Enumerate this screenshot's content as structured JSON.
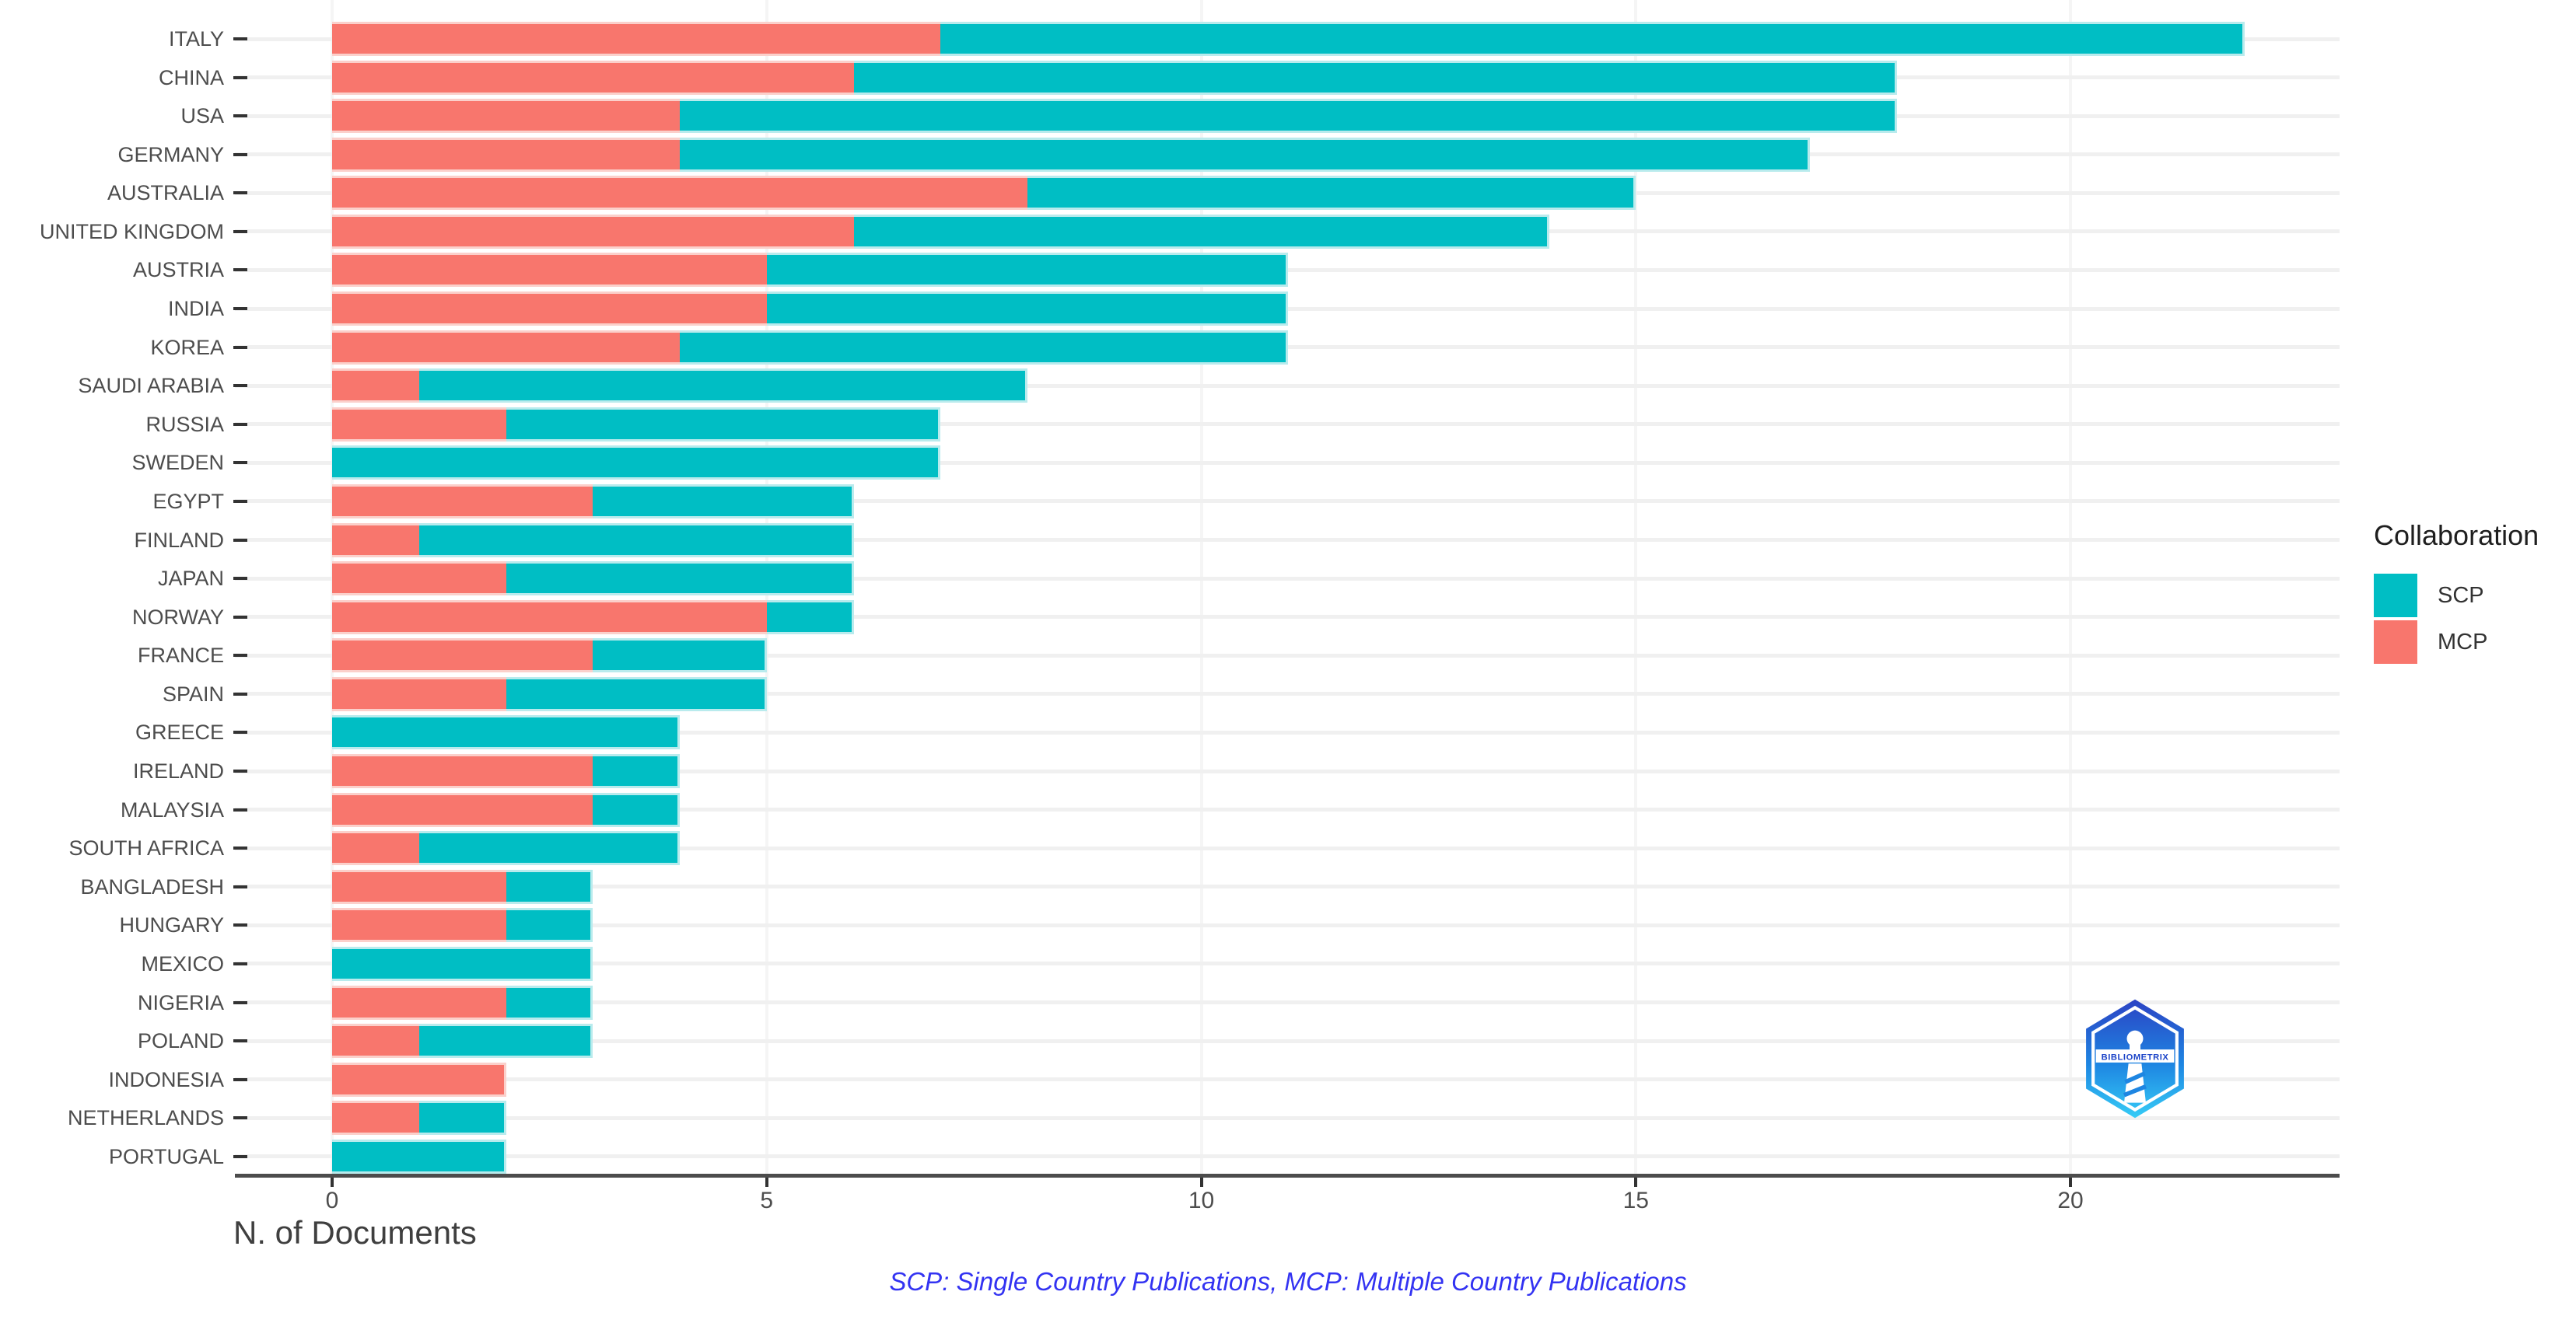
{
  "chart_data": {
    "type": "bar",
    "orientation": "horizontal",
    "stacked": true,
    "stack_order": [
      "MCP",
      "SCP"
    ],
    "title": "",
    "xlabel": "N. of Documents",
    "ylabel": "",
    "xlim": [
      0,
      23
    ],
    "x_ticks": [
      0,
      5,
      10,
      15,
      20
    ],
    "x_tick_labels": [
      "0",
      "5",
      "10",
      "15",
      "20"
    ],
    "grid": "major",
    "legend_position": "right",
    "categories": [
      "ITALY",
      "CHINA",
      "USA",
      "GERMANY",
      "AUSTRALIA",
      "UNITED KINGDOM",
      "AUSTRIA",
      "INDIA",
      "KOREA",
      "SAUDI ARABIA",
      "RUSSIA",
      "SWEDEN",
      "EGYPT",
      "FINLAND",
      "JAPAN",
      "NORWAY",
      "FRANCE",
      "SPAIN",
      "GREECE",
      "IRELAND",
      "MALAYSIA",
      "SOUTH AFRICA",
      "BANGLADESH",
      "HUNGARY",
      "MEXICO",
      "NIGERIA",
      "POLAND",
      "INDONESIA",
      "NETHERLANDS",
      "PORTUGAL"
    ],
    "series": [
      {
        "name": "MCP",
        "color": "#F8766D",
        "values": [
          7,
          6,
          4,
          4,
          8,
          6,
          5,
          5,
          4,
          1,
          2,
          0,
          3,
          1,
          2,
          5,
          3,
          2,
          0,
          3,
          3,
          1,
          2,
          2,
          0,
          2,
          1,
          2,
          1,
          0
        ]
      },
      {
        "name": "SCP",
        "color": "#00BEC4",
        "values": [
          15,
          12,
          14,
          13,
          7,
          8,
          6,
          6,
          7,
          7,
          5,
          7,
          3,
          5,
          4,
          1,
          2,
          3,
          4,
          1,
          1,
          3,
          1,
          1,
          3,
          1,
          2,
          0,
          1,
          2
        ]
      }
    ],
    "totals": [
      22,
      18,
      18,
      17,
      15,
      14,
      11,
      11,
      11,
      8,
      7,
      7,
      6,
      6,
      6,
      6,
      5,
      5,
      4,
      4,
      4,
      4,
      3,
      3,
      3,
      3,
      3,
      2,
      2,
      2
    ]
  },
  "legend": {
    "title": "Collaboration",
    "items": [
      {
        "label": "SCP",
        "color": "#00BEC4"
      },
      {
        "label": "MCP",
        "color": "#F8766D"
      }
    ]
  },
  "caption": {
    "text": "SCP: Single Country Publications, MCP: Multiple Country Publications",
    "color": "#3333F2"
  },
  "logo": {
    "text": "BIBLIOMETRIX"
  }
}
